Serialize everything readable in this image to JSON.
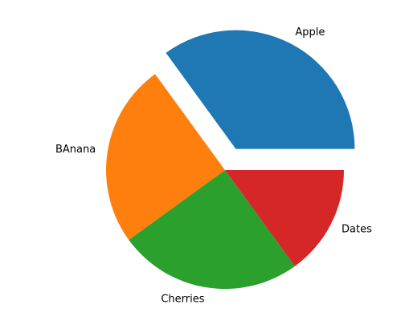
{
  "chart_data": {
    "type": "pie",
    "title": "",
    "labels": [
      "Apple",
      "BAnana",
      "Cherries",
      "Dates"
    ],
    "values": [
      35,
      25,
      25,
      15
    ],
    "explode": [
      0.2,
      0,
      0,
      0
    ],
    "colors": [
      "#1f77b4",
      "#ff7f0e",
      "#2ca02c",
      "#d62728"
    ],
    "start_angle_deg": 0,
    "direction": "counterclockwise",
    "legend": "none"
  }
}
